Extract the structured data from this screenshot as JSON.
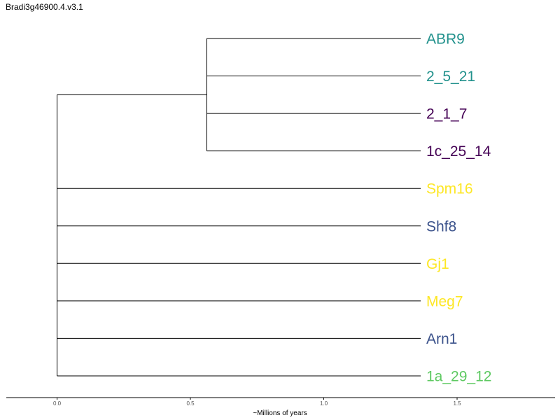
{
  "chart_data": {
    "type": "dendrogram",
    "title": "Bradi3g46900.4.v3.1",
    "xlabel": "~Millions of years",
    "xlim": [
      0.0,
      1.87
    ],
    "xticks": [
      "0.0",
      "0.5",
      "1.0",
      "1.5"
    ],
    "xtick_values": [
      0.0,
      0.5,
      1.0,
      1.5
    ],
    "root_age": 1.36,
    "leaves": [
      {
        "name": "ABR9",
        "color": "#21918c"
      },
      {
        "name": "2_5_21",
        "color": "#21918c"
      },
      {
        "name": "2_1_7",
        "color": "#440154"
      },
      {
        "name": "1c_25_14",
        "color": "#440154"
      },
      {
        "name": "Spm16",
        "color": "#fde725"
      },
      {
        "name": "Shf8",
        "color": "#3b528b"
      },
      {
        "name": "Gj1",
        "color": "#fde725"
      },
      {
        "name": "Meg7",
        "color": "#fde725"
      },
      {
        "name": "Arn1",
        "color": "#3b528b"
      },
      {
        "name": "1a_29_12",
        "color": "#5ec962"
      }
    ],
    "clusters": [
      {
        "members": [
          0,
          1
        ],
        "age": 0.8
      },
      {
        "members": [
          0,
          1,
          2
        ],
        "age": 0.8
      },
      {
        "members": [
          0,
          1,
          2,
          3
        ],
        "age": 0.8
      },
      {
        "members": [
          0,
          1,
          2,
          3,
          4,
          5,
          6,
          7,
          8,
          9
        ],
        "age": 1.36
      }
    ]
  }
}
